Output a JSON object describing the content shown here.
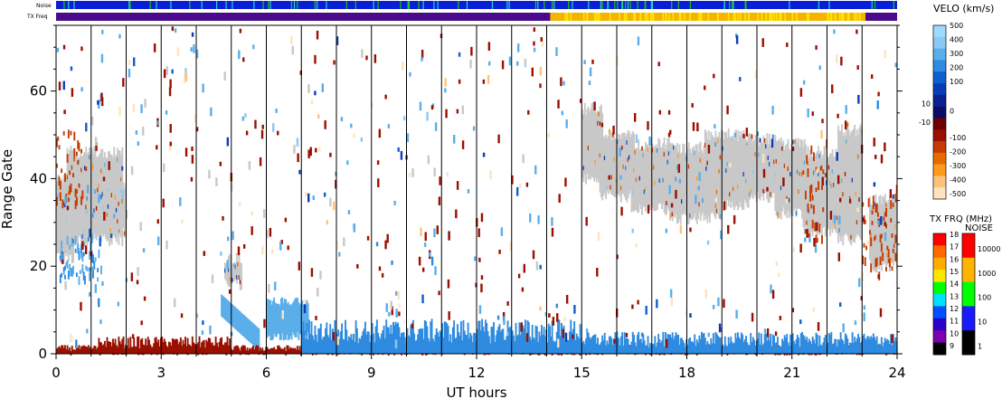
{
  "chart_data": {
    "type": "heatmap",
    "title": "",
    "xlabel": "UT hours",
    "ylabel": "Range Gate",
    "xlim": [
      0,
      24
    ],
    "ylim": [
      0,
      75
    ],
    "x_ticks": [
      0,
      3,
      6,
      9,
      12,
      15,
      18,
      21,
      24
    ],
    "x_tick_labels": [
      "0",
      "3",
      "6",
      "9",
      "12",
      "15",
      "18",
      "21",
      "24"
    ],
    "y_ticks": [
      0,
      20,
      40,
      60
    ],
    "y_tick_labels": [
      "0",
      "20",
      "40",
      "60"
    ],
    "hour_markers": [
      1,
      2,
      3,
      4,
      5,
      6,
      7,
      8,
      9,
      10,
      11,
      12,
      13,
      14,
      15,
      16,
      17,
      18,
      19,
      20,
      21,
      22,
      23
    ],
    "top_strips": {
      "noise_label": "Noise",
      "txfreq_label": "TX Freq",
      "noise_color": "#0a1ed8",
      "txfreq_segments": [
        {
          "from": 0,
          "to": 14.1,
          "color": "#4b0a8c"
        },
        {
          "from": 14.1,
          "to": 23.1,
          "color": "#f4b400"
        },
        {
          "from": 23.1,
          "to": 24,
          "color": "#4b0a8c"
        }
      ]
    },
    "ground_scatter_regions": [
      {
        "t0": 0.0,
        "t1": 0.5,
        "g0": 22,
        "g1": 40
      },
      {
        "t0": 0.3,
        "t1": 1.9,
        "g0": 26,
        "g1": 46
      },
      {
        "t0": 1.0,
        "t1": 2.0,
        "g0": 28,
        "g1": 38
      },
      {
        "t0": 4.8,
        "t1": 5.3,
        "g0": 16,
        "g1": 22
      },
      {
        "t0": 15.0,
        "t1": 15.6,
        "g0": 40,
        "g1": 56
      },
      {
        "t0": 15.5,
        "t1": 16.5,
        "g0": 36,
        "g1": 50
      },
      {
        "t0": 16.4,
        "t1": 17.6,
        "g0": 33,
        "g1": 48
      },
      {
        "t0": 17.5,
        "t1": 19.0,
        "g0": 31,
        "g1": 47
      },
      {
        "t0": 18.5,
        "t1": 19.8,
        "g0": 34,
        "g1": 50
      },
      {
        "t0": 19.7,
        "t1": 20.6,
        "g0": 36,
        "g1": 49
      },
      {
        "t0": 20.5,
        "t1": 21.4,
        "g0": 32,
        "g1": 48
      },
      {
        "t0": 21.3,
        "t1": 22.4,
        "g0": 28,
        "g1": 46
      },
      {
        "t0": 22.3,
        "t1": 23.0,
        "g0": 26,
        "g1": 51
      },
      {
        "t0": 23.2,
        "t1": 24.0,
        "g0": 20,
        "g1": 35
      }
    ],
    "echo_patches": [
      {
        "t0": 4.7,
        "t1": 5.8,
        "g0": 4,
        "g1": 12,
        "velocity_kms": 350,
        "shape": "diagonal"
      },
      {
        "t0": 6.0,
        "t1": 7.2,
        "g0": 3,
        "g1": 13,
        "velocity_kms": 350,
        "shape": "block"
      },
      {
        "t0": 1.2,
        "t1": 5.0,
        "g0": 0,
        "g1": 4,
        "velocity_kms": -150,
        "shape": "band"
      },
      {
        "t0": 0.0,
        "t1": 24.0,
        "g0": 0,
        "g1": 2,
        "velocity_kms": -100,
        "shape": "band"
      },
      {
        "t0": 7.0,
        "t1": 15.0,
        "g0": 0,
        "g1": 8,
        "velocity_kms": 300,
        "shape": "band"
      },
      {
        "t0": 15.0,
        "t1": 24.0,
        "g0": 0,
        "g1": 5,
        "velocity_kms": 300,
        "shape": "band"
      },
      {
        "t0": 0.0,
        "t1": 0.9,
        "g0": 34,
        "g1": 51,
        "velocity_kms": -200,
        "shape": "cloud"
      },
      {
        "t0": 0.1,
        "t1": 1.3,
        "g0": 16,
        "g1": 26,
        "velocity_kms": 300,
        "shape": "cloud"
      },
      {
        "t0": 21.3,
        "t1": 22.0,
        "g0": 25,
        "g1": 48,
        "velocity_kms": -200,
        "shape": "cloud"
      },
      {
        "t0": 23.0,
        "t1": 24.0,
        "g0": 17,
        "g1": 38,
        "velocity_kms": -200,
        "shape": "cloud"
      }
    ],
    "velocity_scale": {
      "title": "VELO (km/s)",
      "ticks": [
        "500",
        "400",
        "300",
        "200",
        "100",
        "10",
        "0",
        "-10",
        "-100",
        "-200",
        "-300",
        "-400",
        "-500"
      ],
      "colors": [
        "#9fd9ff",
        "#8bc8f5",
        "#5aaeea",
        "#2e8be0",
        "#0f5fd0",
        "#0a3bb8",
        "#0a1f90",
        "#0c0c68",
        "#6e0000",
        "#9a1000",
        "#c43a00",
        "#e66b00",
        "#ff9a1a",
        "#ffc27a",
        "#ffe3bf"
      ]
    },
    "txfreq_scale": {
      "title": "TX FRQ (MHz)",
      "ticks": [
        "18",
        "17",
        "16",
        "15",
        "14",
        "13",
        "12",
        "11",
        "10",
        "9"
      ],
      "colors": [
        "#ff0000",
        "#ff6a00",
        "#ffae00",
        "#ffe600",
        "#00ff00",
        "#00e0ff",
        "#0050ff",
        "#2b00c8",
        "#7a00b0",
        "#000000"
      ]
    },
    "noise_scale": {
      "title": "NOISE",
      "ticks": [
        "10000",
        "1000",
        "100",
        "10",
        "1"
      ],
      "colors": [
        "#ff0000",
        "#ffb400",
        "#00ff00",
        "#1a1aff",
        "#000000"
      ]
    }
  }
}
